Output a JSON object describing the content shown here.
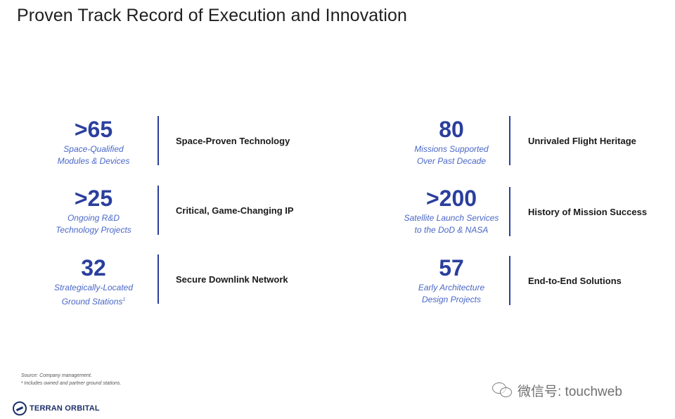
{
  "title": "Proven Track Record of Execution and Innovation",
  "stats": [
    {
      "number": ">65",
      "desc_line1": "Space-Qualified",
      "desc_line2": "Modules & Devices",
      "label": "Space-Proven Technology"
    },
    {
      "number": ">25",
      "desc_line1": "Ongoing R&D",
      "desc_line2": "Technology Projects",
      "label": "Critical, Game-Changing IP"
    },
    {
      "number": "32",
      "desc_line1": "Strategically-Located",
      "desc_line2": "Ground Stations",
      "desc_sup": "1",
      "label": "Secure Downlink Network"
    },
    {
      "number": "80",
      "desc_line1": "Missions Supported",
      "desc_line2": "Over Past Decade",
      "label": "Unrivaled Flight Heritage"
    },
    {
      "number": ">200",
      "desc_line1": "Satellite Launch Services",
      "desc_line2": "to the DoD & NASA",
      "label": "History of Mission Success"
    },
    {
      "number": "57",
      "desc_line1": "Early Architecture",
      "desc_line2": "Design Projects",
      "label": "End-to-End Solutions"
    }
  ],
  "footnotes": {
    "source": "Source: Company management.",
    "note1": "¹ Includes owned and partner ground stations."
  },
  "logo": {
    "text": "TERRAN ORBITAL",
    "icon": "terran-orbital-logo-icon"
  },
  "watermark": {
    "text": "微信号: touchweb",
    "icon": "wechat-icon"
  },
  "colors": {
    "number": "#2a3f9d",
    "description": "#4a67c7",
    "divider": "#2a3f9d",
    "label": "#1a1a1a"
  }
}
